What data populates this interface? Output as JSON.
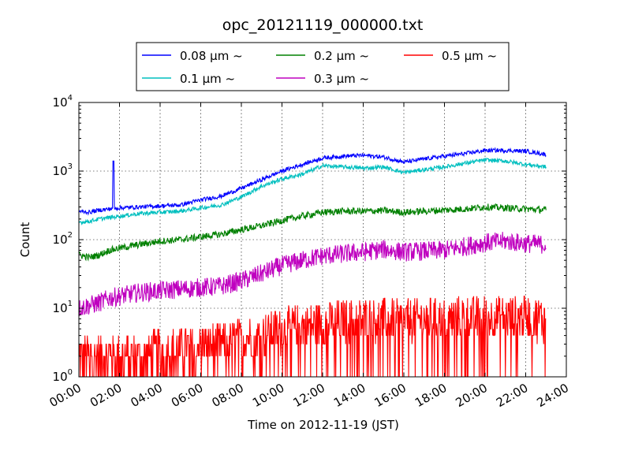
{
  "chart_data": {
    "type": "line",
    "title": "opc_20121119_000000.txt",
    "xlabel": "Time on 2012-11-19 (JST)",
    "ylabel": "Count",
    "yscale": "log",
    "ylim": [
      1,
      10000
    ],
    "xlim": [
      "00:00",
      "24:00"
    ],
    "xticks": [
      "00:00",
      "02:00",
      "04:00",
      "06:00",
      "08:00",
      "10:00",
      "12:00",
      "14:00",
      "16:00",
      "18:00",
      "20:00",
      "22:00",
      "24:00"
    ],
    "yticks": [
      {
        "base": "10",
        "exp": "0"
      },
      {
        "base": "10",
        "exp": "1"
      },
      {
        "base": "10",
        "exp": "2"
      },
      {
        "base": "10",
        "exp": "3"
      },
      {
        "base": "10",
        "exp": "4"
      }
    ],
    "grid": true,
    "legend_position": "top-center",
    "x_hours": [
      0,
      0.5,
      1,
      1.5,
      2,
      3,
      4,
      5,
      6,
      7,
      8,
      9,
      10,
      11,
      12,
      13,
      14,
      15,
      16,
      17,
      18,
      19,
      20,
      21,
      22,
      23
    ],
    "series": [
      {
        "name": "0.08 μm ~",
        "color": "#0000ff",
        "values": [
          260,
          250,
          270,
          280,
          290,
          300,
          310,
          320,
          380,
          430,
          560,
          750,
          1000,
          1250,
          1550,
          1650,
          1700,
          1600,
          1350,
          1500,
          1650,
          1800,
          2000,
          2000,
          1950,
          1750
        ]
      },
      {
        "name": "0.1 μm ~",
        "color": "#00bfbf",
        "values": [
          180,
          185,
          200,
          210,
          220,
          240,
          250,
          260,
          290,
          320,
          420,
          600,
          770,
          900,
          1200,
          1150,
          1100,
          1150,
          950,
          1050,
          1150,
          1300,
          1450,
          1400,
          1250,
          1150
        ]
      },
      {
        "name": "0.2 μm ~",
        "color": "#008000",
        "values": [
          60,
          55,
          60,
          70,
          75,
          85,
          95,
          100,
          110,
          120,
          140,
          160,
          190,
          220,
          250,
          260,
          260,
          265,
          250,
          260,
          270,
          280,
          300,
          290,
          280,
          270
        ]
      },
      {
        "name": "0.3 μm ~",
        "color": "#bf00bf",
        "values": [
          10,
          11,
          12,
          14,
          15,
          17,
          18,
          19,
          20,
          21,
          25,
          32,
          42,
          50,
          58,
          62,
          66,
          72,
          66,
          68,
          70,
          80,
          90,
          95,
          88,
          85
        ]
      },
      {
        "name": "0.5 μm ~",
        "color": "#ff0000",
        "values": [
          2,
          2,
          2,
          2,
          2,
          2,
          2.5,
          2.5,
          3,
          3,
          3.5,
          4,
          5,
          5.5,
          6,
          6.5,
          7,
          7,
          6.5,
          7,
          7,
          7.5,
          7.5,
          7.5,
          7.5,
          7
        ]
      }
    ],
    "spikes": [
      {
        "series": 0,
        "x_hour": 1.7,
        "value": 1400
      }
    ]
  }
}
